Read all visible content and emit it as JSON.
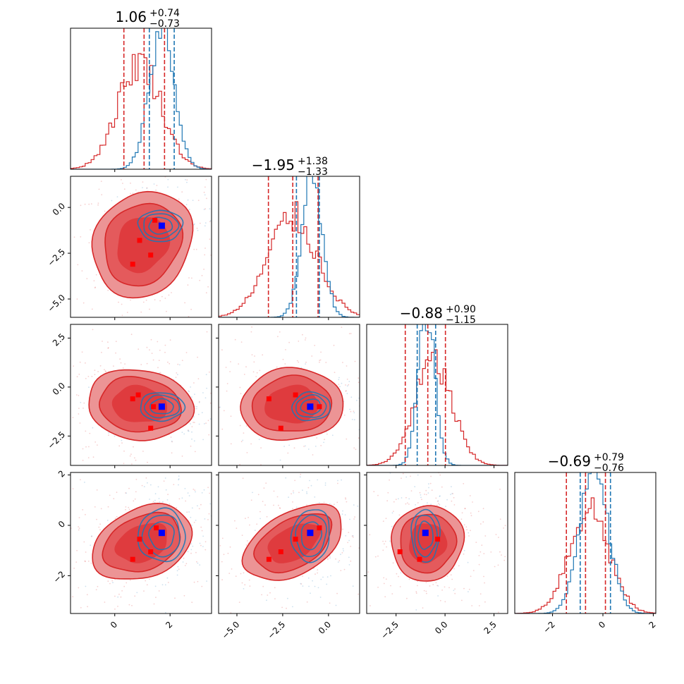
{
  "chart_data": {
    "type": "corner",
    "parameters": 4,
    "colors": {
      "posterior_a": "#d62728",
      "posterior_b": "#1f77b4",
      "truth_marker": "#0000ff",
      "sample_marker": "#ff0000"
    },
    "grid": false,
    "legend": "none",
    "titles": [
      {
        "value": "1.06",
        "plus": "+0.74",
        "minus": "−0.73"
      },
      {
        "value": "−1.95",
        "plus": "+1.38",
        "minus": "−1.33"
      },
      {
        "value": "−0.88",
        "plus": "+0.90",
        "minus": "−1.15"
      },
      {
        "value": "−0.69",
        "plus": "+0.79",
        "minus": "−0.76"
      }
    ],
    "axes": [
      {
        "range": [
          -1.6,
          3.5
        ],
        "ticks": [
          0,
          2
        ],
        "tick_labels": [
          "0",
          "2"
        ]
      },
      {
        "range": [
          -6.0,
          1.7
        ],
        "ticks": [
          -5.0,
          -2.5,
          0.0
        ],
        "tick_labels": [
          "−5.0",
          "−2.5",
          "0.0"
        ]
      },
      {
        "range": [
          -4.0,
          3.2
        ],
        "ticks": [
          -2.5,
          0.0,
          2.5
        ],
        "tick_labels": [
          "−2.5",
          "0.0",
          "2.5"
        ]
      },
      {
        "range": [
          -3.5,
          2.1
        ],
        "ticks": [
          -2,
          0,
          2
        ],
        "tick_labels": [
          "−2",
          "0",
          "2"
        ]
      }
    ],
    "histograms": [
      {
        "quantiles_a": [
          0.33,
          1.06,
          1.8
        ],
        "quantiles_b": [
          1.25,
          2.15
        ],
        "mode_a": 0.9,
        "sd_a": 0.78,
        "mode_b": 1.7,
        "sd_b": 0.45
      },
      {
        "quantiles_a": [
          -3.28,
          -1.95,
          -0.57
        ],
        "quantiles_b": [
          -1.75,
          -0.5
        ],
        "mode_a": -1.95,
        "sd_a": 1.35,
        "mode_b": -0.9,
        "sd_b": 0.55
      },
      {
        "quantiles_a": [
          -2.03,
          -0.88,
          0.02
        ],
        "quantiles_b": [
          -1.42,
          -0.48
        ],
        "mode_a": -0.6,
        "sd_a": 0.95,
        "mode_b": -0.95,
        "sd_b": 0.42
      },
      {
        "quantiles_a": [
          -1.45,
          -0.69,
          0.1
        ],
        "quantiles_b": [
          -0.9,
          0.3
        ],
        "mode_a": -0.55,
        "sd_a": 0.78,
        "mode_b": -0.35,
        "sd_b": 0.55
      }
    ],
    "truth_point": [
      1.7,
      -1.0,
      -1.0,
      -0.3
    ],
    "sample_points": [
      {
        "x": [
          1.45,
          0.9,
          1.3,
          0.65
        ],
        "y": [
          -0.7,
          -1.8,
          -2.6,
          -3.1
        ]
      },
      [
        [
          1.4,
          -1.0
        ],
        [
          0.85,
          -0.4
        ],
        [
          1.3,
          -2.1
        ],
        [
          0.65,
          -0.6
        ]
      ],
      [
        [
          -0.5,
          -1.0
        ],
        [
          -1.8,
          -0.4
        ],
        [
          -3.25,
          -0.6
        ],
        [
          -2.6,
          -2.1
        ]
      ],
      [
        [
          1.5,
          -0.1
        ],
        [
          0.9,
          -0.55
        ],
        [
          1.3,
          -1.05
        ],
        [
          0.65,
          -1.35
        ]
      ],
      [
        [
          -0.5,
          -0.1
        ],
        [
          -1.8,
          -0.55
        ],
        [
          -2.6,
          -1.05
        ],
        [
          -3.25,
          -1.35
        ]
      ],
      [
        [
          -0.38,
          -0.55
        ],
        [
          -1.3,
          -1.35
        ],
        [
          -2.3,
          -1.05
        ]
      ]
    ],
    "pairs": [
      {
        "row": 1,
        "col": 0,
        "a": {
          "mx": 1.0,
          "my": -2.0,
          "sx": 0.9,
          "sy": 1.45,
          "rho": 0.15
        },
        "b": {
          "mx": 1.65,
          "my": -1.0,
          "sx": 0.42,
          "sy": 0.45,
          "rho": 0.0
        }
      },
      {
        "row": 2,
        "col": 0,
        "a": {
          "mx": 0.9,
          "my": -0.9,
          "sx": 0.95,
          "sy": 0.9,
          "rho": -0.1
        },
        "b": {
          "mx": 1.7,
          "my": -1.0,
          "sx": 0.42,
          "sy": 0.38,
          "rho": 0.0
        }
      },
      {
        "row": 2,
        "col": 1,
        "a": {
          "mx": -2.0,
          "my": -0.9,
          "sx": 1.4,
          "sy": 0.92,
          "rho": 0.05
        },
        "b": {
          "mx": -0.95,
          "my": -1.0,
          "sx": 0.55,
          "sy": 0.38,
          "rho": 0.05
        }
      },
      {
        "row": 3,
        "col": 0,
        "a": {
          "mx": 1.0,
          "my": -0.7,
          "sx": 0.9,
          "sy": 0.75,
          "rho": 0.3
        },
        "b": {
          "mx": 1.7,
          "my": -0.4,
          "sx": 0.45,
          "sy": 0.55,
          "rho": 0.0
        }
      },
      {
        "row": 3,
        "col": 1,
        "a": {
          "mx": -1.9,
          "my": -0.7,
          "sx": 1.35,
          "sy": 0.75,
          "rho": 0.45
        },
        "b": {
          "mx": -0.95,
          "my": -0.4,
          "sx": 0.55,
          "sy": 0.55,
          "rho": 0.1
        }
      },
      {
        "row": 3,
        "col": 2,
        "a": {
          "mx": -0.9,
          "my": -0.7,
          "sx": 0.92,
          "sy": 0.75,
          "rho": 0.05
        },
        "b": {
          "mx": -1.0,
          "my": -0.4,
          "sx": 0.38,
          "sy": 0.55,
          "rho": 0.0
        }
      }
    ]
  }
}
